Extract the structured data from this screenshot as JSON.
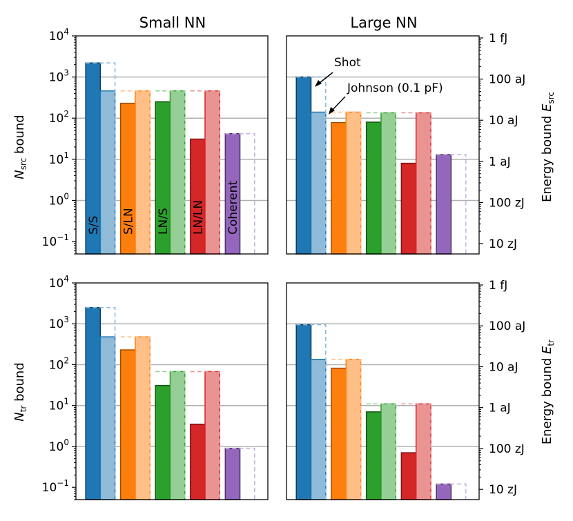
{
  "columns": [
    "Small NN",
    "Large NN"
  ],
  "left_ylabels": [
    "N_src bound",
    "N_tr bound"
  ],
  "right_ylabels": [
    "Energy bound E_src",
    "Energy bound E_tr"
  ],
  "energy_ticks": [
    "1 fJ",
    "100 aJ",
    "10 aJ",
    "1 aJ",
    "100 zJ",
    "10 zJ"
  ],
  "group_labels": [
    "S/S",
    "S/LN",
    "LN/S",
    "LN/LN",
    "Coherent"
  ],
  "annotations": [
    "Shot",
    "Johnson (0.1 pF)"
  ],
  "colors": {
    "dark": [
      "#1f77b4",
      "#ff7f0e",
      "#2ca02c",
      "#d62728",
      "#9467bd"
    ],
    "light": [
      "#8fbbd9",
      "#ffbf86",
      "#95cf95",
      "#ea9393",
      "#c9b3de"
    ],
    "edge": [
      "#0e3a5a",
      "#a04d00",
      "#135413",
      "#7a1313",
      "#4d3366"
    ],
    "gridline": "#b0b0b0"
  },
  "chart_data": [
    {
      "type": "bar",
      "title": "Small NN",
      "ylabel": "N_src bound",
      "yscale": "log",
      "ylim": [
        0.05,
        10000
      ],
      "categories": [
        "S/S",
        "S/LN",
        "LN/S",
        "LN/LN",
        "Coherent"
      ],
      "series": [
        {
          "name": "dark (shot)",
          "values": [
            2200,
            230,
            250,
            31,
            42
          ]
        },
        {
          "name": "light (Johnson 0.1 pF)",
          "values": [
            460,
            460,
            460,
            460,
            null
          ]
        },
        {
          "name": "dashed outline",
          "values": [
            2200,
            460,
            460,
            460,
            42
          ]
        }
      ],
      "yticks": [
        "10^-1",
        "10^0",
        "10^1",
        "10^2",
        "10^3",
        "10^4"
      ]
    },
    {
      "type": "bar",
      "title": "Large NN",
      "ylabel": "Energy bound E_src",
      "yscale": "log",
      "ylim": [
        0.05,
        10000
      ],
      "categories": [
        "S/S",
        "S/LN",
        "LN/S",
        "LN/LN",
        "Coherent"
      ],
      "series": [
        {
          "name": "dark (shot)",
          "values": [
            1000,
            78,
            80,
            8,
            13
          ]
        },
        {
          "name": "light (Johnson 0.1 pF)",
          "values": [
            140,
            140,
            135,
            135,
            null
          ]
        },
        {
          "name": "dashed outline",
          "values": [
            1000,
            140,
            135,
            135,
            13
          ]
        }
      ],
      "yticks": [
        "1 fJ",
        "100 aJ",
        "10 aJ",
        "1 aJ",
        "100 zJ",
        "10 zJ"
      ]
    },
    {
      "type": "bar",
      "title": "Small NN",
      "ylabel": "N_tr bound",
      "yscale": "log",
      "ylim": [
        0.05,
        10000
      ],
      "categories": [
        "S/S",
        "S/LN",
        "LN/S",
        "LN/LN",
        "Coherent"
      ],
      "series": [
        {
          "name": "dark (shot)",
          "values": [
            2500,
            230,
            31,
            3.5,
            0.9
          ]
        },
        {
          "name": "light (Johnson 0.1 pF)",
          "values": [
            480,
            480,
            68,
            68,
            null
          ]
        },
        {
          "name": "dashed outline",
          "values": [
            2500,
            480,
            68,
            68,
            0.9
          ]
        }
      ],
      "yticks": [
        "10^-1",
        "10^0",
        "10^1",
        "10^2",
        "10^3",
        "10^4"
      ]
    },
    {
      "type": "bar",
      "title": "Large NN",
      "ylabel": "Energy bound E_tr",
      "yscale": "log",
      "ylim": [
        0.05,
        10000
      ],
      "categories": [
        "S/S",
        "S/LN",
        "LN/S",
        "LN/LN",
        "Coherent"
      ],
      "series": [
        {
          "name": "dark (shot)",
          "values": [
            950,
            82,
            7,
            0.7,
            0.12
          ]
        },
        {
          "name": "light (Johnson 0.1 pF)",
          "values": [
            135,
            135,
            11,
            11,
            null
          ]
        },
        {
          "name": "dashed outline",
          "values": [
            950,
            135,
            11,
            11,
            0.12
          ]
        }
      ],
      "yticks": [
        "1 fJ",
        "100 aJ",
        "10 aJ",
        "1 aJ",
        "100 zJ",
        "10 zJ"
      ]
    }
  ]
}
